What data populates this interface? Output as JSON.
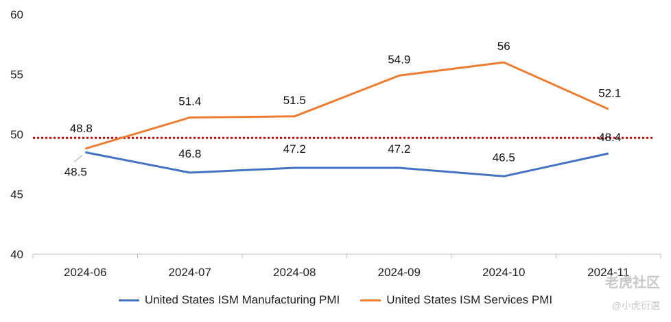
{
  "chart_data": {
    "type": "line",
    "categories": [
      "2024-06",
      "2024-07",
      "2024-08",
      "2024-09",
      "2024-10",
      "2024-11"
    ],
    "series": [
      {
        "name": "United States ISM Manufacturing PMI",
        "color": "#4472C4",
        "values": [
          48.5,
          46.8,
          47.2,
          47.2,
          46.5,
          48.4
        ],
        "labels": [
          "48.5",
          "46.8",
          "47.2",
          "47.2",
          "46.5",
          "48.4"
        ]
      },
      {
        "name": "United States ISM Services PMI",
        "color": "#ED7D31",
        "values": [
          48.8,
          51.4,
          51.5,
          54.9,
          56,
          52.1
        ],
        "labels": [
          "48.8",
          "51.4",
          "51.5",
          "54.9",
          "56",
          "52.1"
        ]
      }
    ],
    "reference_line": {
      "value": 49.7,
      "color": "#C00000",
      "style": "dotted"
    },
    "ylim": [
      40,
      60
    ],
    "yticks": [
      40,
      45,
      50,
      55,
      60
    ],
    "ytick_labels": [
      "40",
      "45",
      "50",
      "55",
      "60"
    ],
    "grid": false,
    "legend_position": "bottom",
    "title": "",
    "xlabel": "",
    "ylabel": ""
  },
  "watermark": {
    "main": "老虎社区",
    "sub": "@小虎衍選"
  }
}
